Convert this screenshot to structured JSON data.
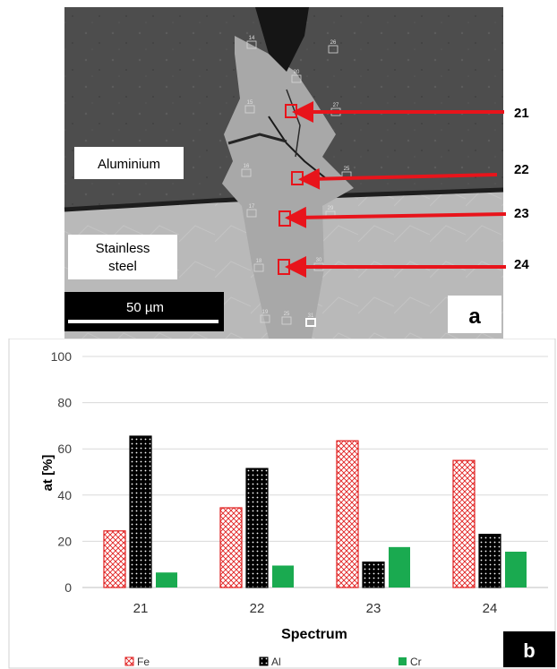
{
  "micrograph": {
    "region_label_top": "Aluminium",
    "region_label_bottom_line1": "Stainless",
    "region_label_bottom_line2": "steel",
    "scale_bar_text": "50 µm",
    "panel_label": "a",
    "arrow_labels": [
      "21",
      "22",
      "23",
      "24"
    ],
    "spot_labels": [
      "14",
      "26",
      "20",
      "15",
      "27",
      "16",
      "25",
      "17",
      "29",
      "18",
      "30",
      "19",
      "25",
      "31"
    ]
  },
  "chart_data": {
    "type": "bar",
    "title": "",
    "xlabel": "Spectrum",
    "ylabel": "at [%]",
    "ylim": [
      0,
      100
    ],
    "yticks": [
      0,
      20,
      40,
      60,
      80,
      100
    ],
    "grid": true,
    "legend_position": "bottom",
    "categories": [
      "21",
      "22",
      "23",
      "24"
    ],
    "series": [
      {
        "name": "Fe",
        "values": [
          24.5,
          34.5,
          63.5,
          55
        ],
        "color": "#e02020",
        "pattern": "crosshatch"
      },
      {
        "name": "Al",
        "values": [
          65.5,
          51.5,
          11,
          23
        ],
        "color": "#000000",
        "pattern": "dots"
      },
      {
        "name": "Cr",
        "values": [
          6.5,
          9.5,
          17.5,
          15.5
        ],
        "color": "#1aaa50",
        "pattern": "solid"
      }
    ],
    "panel_label": "b"
  }
}
